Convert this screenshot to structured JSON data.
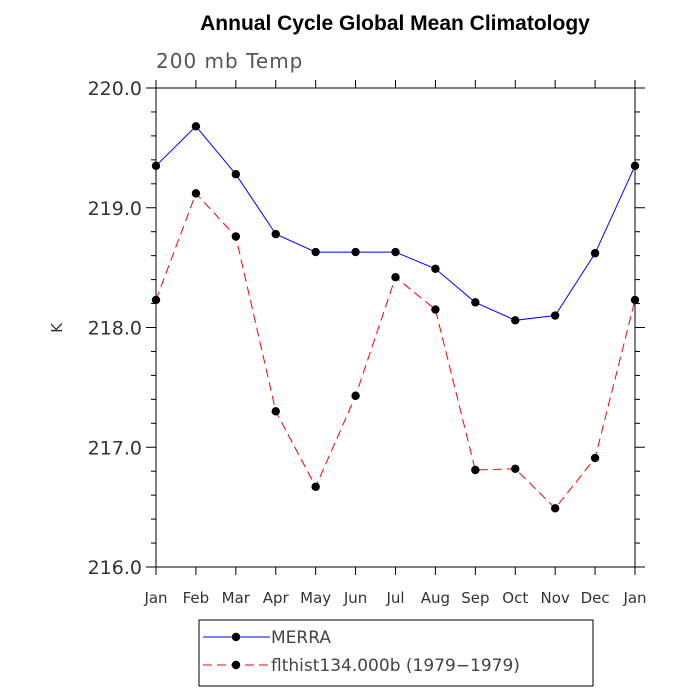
{
  "chart_data": {
    "type": "line",
    "title": "Annual Cycle Global Mean Climatology",
    "subtitle": "200 mb Temp",
    "xlabel": "",
    "ylabel": "K",
    "categories": [
      "Jan",
      "Feb",
      "Mar",
      "Apr",
      "May",
      "Jun",
      "Jul",
      "Aug",
      "Sep",
      "Oct",
      "Nov",
      "Dec",
      "Jan"
    ],
    "ylim": [
      216.0,
      220.0
    ],
    "yticks": [
      "216.0",
      "217.0",
      "218.0",
      "219.0",
      "220.0"
    ],
    "series": [
      {
        "name": "MERRA",
        "color": "#0000ff",
        "style": "solid",
        "values": [
          219.35,
          219.68,
          219.28,
          218.78,
          218.63,
          218.63,
          218.63,
          218.49,
          218.21,
          218.06,
          218.1,
          218.62,
          219.35
        ]
      },
      {
        "name": "flthist134.000b (1979-1979)",
        "color": "#ff0000",
        "style": "dashed",
        "values": [
          218.23,
          219.12,
          218.76,
          217.3,
          216.67,
          217.43,
          218.42,
          218.15,
          216.81,
          216.82,
          216.49,
          216.91,
          218.23
        ]
      }
    ],
    "legend_labels": [
      "MERRA",
      "flthist134.000b (1979−1979)"
    ],
    "grid": false,
    "legend_position": "bottom"
  }
}
